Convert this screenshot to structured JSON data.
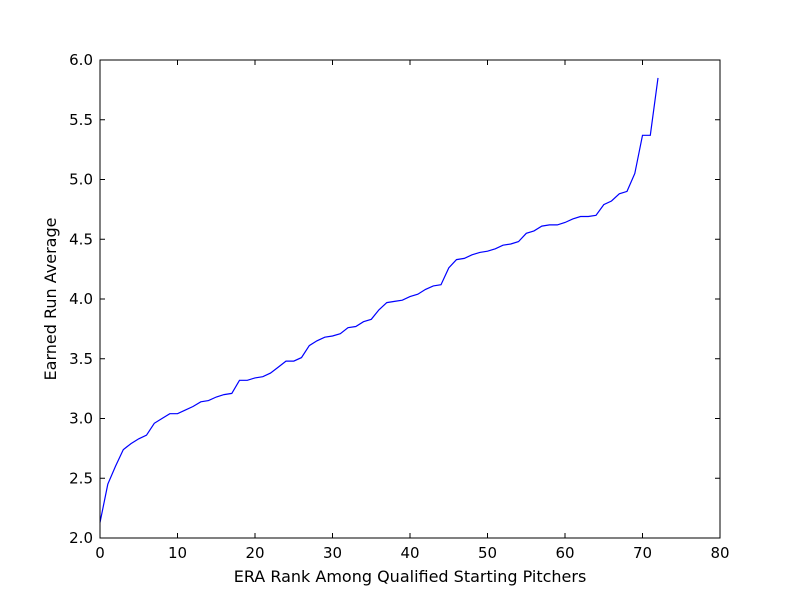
{
  "chart_data": {
    "type": "line",
    "title": "",
    "xlabel": "ERA Rank Among Qualified Starting Pitchers",
    "ylabel": "Earned Run Average",
    "xlim": [
      0,
      80
    ],
    "ylim": [
      2.0,
      6.0
    ],
    "xticks": [
      0,
      10,
      20,
      30,
      40,
      50,
      60,
      70,
      80
    ],
    "yticks": [
      2.0,
      2.5,
      3.0,
      3.5,
      4.0,
      4.5,
      5.0,
      5.5,
      6.0
    ],
    "xtick_labels": [
      "0",
      "10",
      "20",
      "30",
      "40",
      "50",
      "60",
      "70",
      "80"
    ],
    "ytick_labels": [
      "2.0",
      "2.5",
      "3.0",
      "3.5",
      "4.0",
      "4.5",
      "5.0",
      "5.5",
      "6.0"
    ],
    "grid": false,
    "series": [
      {
        "color": "#0000ff",
        "x": [
          0,
          1,
          2,
          3,
          4,
          5,
          6,
          7,
          8,
          9,
          10,
          11,
          12,
          13,
          14,
          15,
          16,
          17,
          18,
          19,
          20,
          21,
          22,
          23,
          24,
          25,
          26,
          27,
          28,
          29,
          30,
          31,
          32,
          33,
          34,
          35,
          36,
          37,
          38,
          39,
          40,
          41,
          42,
          43,
          44,
          45,
          46,
          47,
          48,
          49,
          50,
          51,
          52,
          53,
          54,
          55,
          56,
          57,
          58,
          59,
          60,
          61,
          62,
          63,
          64,
          65,
          66,
          67,
          68,
          69,
          70,
          71,
          72
        ],
        "values": [
          2.13,
          2.45,
          2.6,
          2.74,
          2.79,
          2.83,
          2.86,
          2.96,
          3.0,
          3.04,
          3.04,
          3.07,
          3.1,
          3.14,
          3.15,
          3.18,
          3.2,
          3.21,
          3.32,
          3.32,
          3.34,
          3.35,
          3.38,
          3.43,
          3.48,
          3.48,
          3.51,
          3.61,
          3.65,
          3.68,
          3.69,
          3.71,
          3.76,
          3.77,
          3.81,
          3.83,
          3.91,
          3.97,
          3.98,
          3.99,
          4.02,
          4.04,
          4.08,
          4.11,
          4.12,
          4.26,
          4.33,
          4.34,
          4.37,
          4.39,
          4.4,
          4.42,
          4.45,
          4.46,
          4.48,
          4.55,
          4.57,
          4.61,
          4.62,
          4.62,
          4.64,
          4.67,
          4.69,
          4.69,
          4.7,
          4.79,
          4.82,
          4.88,
          4.9,
          5.05,
          5.37,
          5.37,
          5.85
        ]
      }
    ]
  }
}
